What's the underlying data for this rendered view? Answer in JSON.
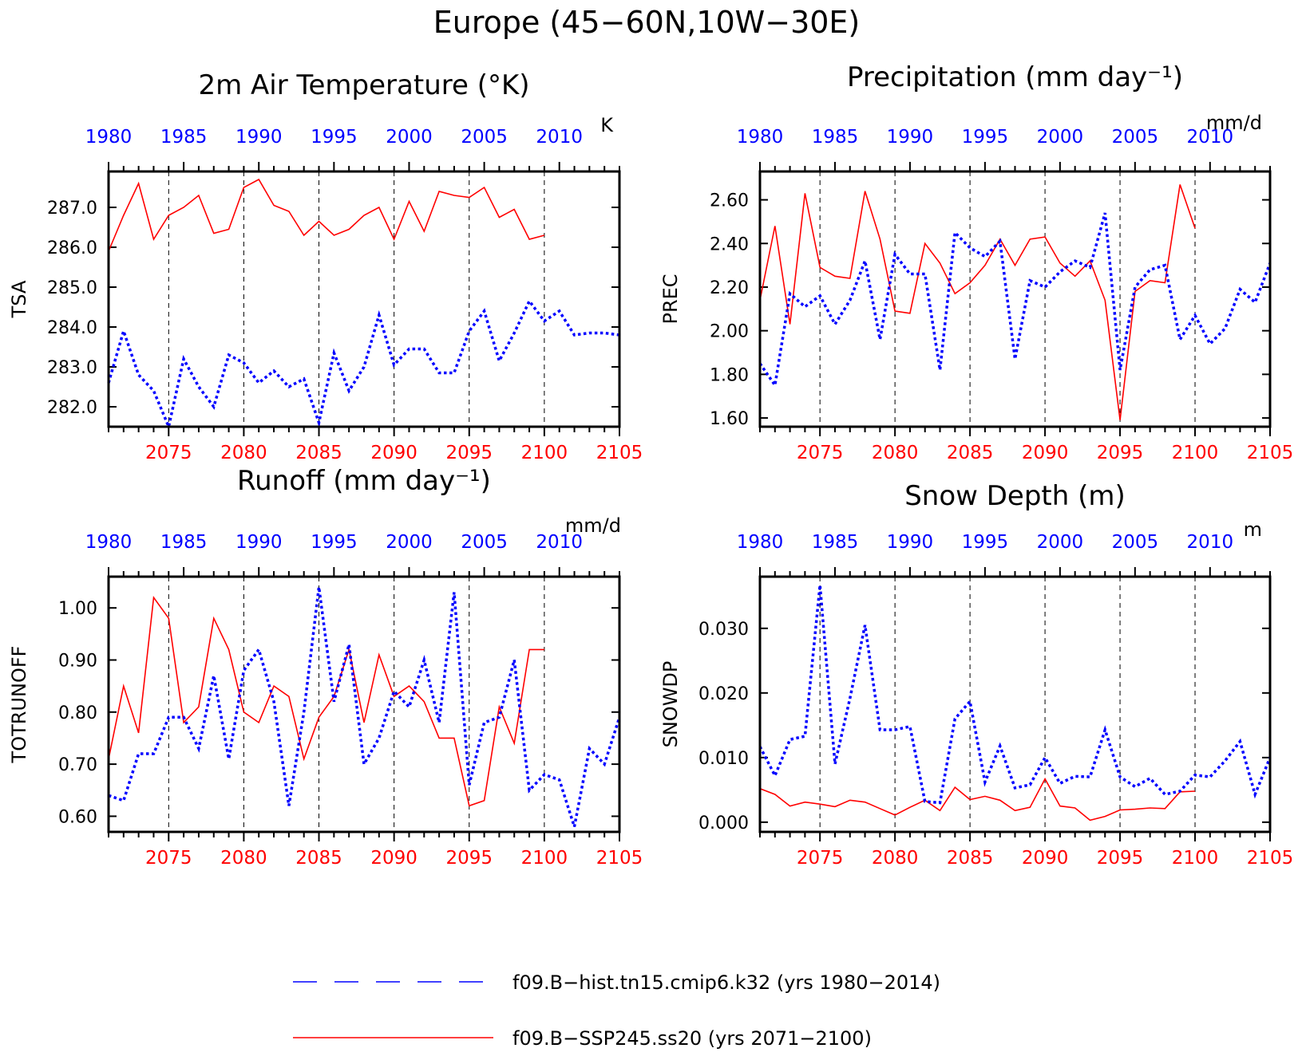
{
  "main_title": "Europe (45−60N,10W−30E)",
  "colors": {
    "hist": "#0000ff",
    "ssp": "#ff0000",
    "axis": "#000000"
  },
  "legend": {
    "hist_label": "f09.B−hist.tn15.cmip6.k32 (yrs 1980−2014)",
    "ssp_label": "f09.B−SSP245.ss20 (yrs 2071−2100)"
  },
  "chart_data": [
    {
      "id": "tsa",
      "type": "line",
      "title": "2m Air Temperature (°K)",
      "ylabel": "TSA",
      "units": "K",
      "ylim": [
        281.5,
        287.9
      ],
      "yticks": [
        282.0,
        283.0,
        284.0,
        285.0,
        286.0,
        287.0
      ],
      "yticklabels": [
        "282.0",
        "283.0",
        "284.0",
        "285.0",
        "286.0",
        "287.0"
      ],
      "x_bottom_range": [
        2071,
        2105
      ],
      "x_bottom_ticks": [
        2075,
        2080,
        2085,
        2090,
        2095,
        2100,
        2105
      ],
      "x_top_range": [
        1980,
        2014
      ],
      "x_top_ticks": [
        1980,
        1985,
        1990,
        1995,
        2000,
        2005,
        2010
      ],
      "vlines": [
        2075,
        2080,
        2085,
        2090,
        2095,
        2100
      ],
      "series": [
        {
          "id": "ssp",
          "axis": "bottom",
          "x": [
            2071,
            2072,
            2073,
            2074,
            2075,
            2076,
            2077,
            2078,
            2079,
            2080,
            2081,
            2082,
            2083,
            2084,
            2085,
            2086,
            2087,
            2088,
            2089,
            2090,
            2091,
            2092,
            2093,
            2094,
            2095,
            2096,
            2097,
            2098,
            2099,
            2100
          ],
          "values": [
            285.9,
            286.8,
            287.6,
            286.2,
            286.8,
            287.0,
            287.3,
            286.35,
            286.45,
            287.5,
            287.7,
            287.05,
            286.9,
            286.3,
            286.65,
            286.3,
            286.45,
            286.8,
            287.0,
            286.2,
            287.15,
            286.4,
            287.4,
            287.3,
            287.25,
            287.5,
            286.75,
            286.95,
            286.2,
            286.3
          ]
        },
        {
          "id": "hist",
          "axis": "top",
          "x": [
            1980,
            1981,
            1982,
            1983,
            1984,
            1985,
            1986,
            1987,
            1988,
            1989,
            1990,
            1991,
            1992,
            1993,
            1994,
            1995,
            1996,
            1997,
            1998,
            1999,
            2000,
            2001,
            2002,
            2003,
            2004,
            2005,
            2006,
            2007,
            2008,
            2009,
            2010,
            2011,
            2012,
            2013,
            2014
          ],
          "values": [
            282.6,
            283.9,
            282.8,
            282.4,
            281.5,
            283.2,
            282.5,
            282.0,
            283.3,
            283.1,
            282.6,
            282.9,
            282.5,
            282.7,
            281.6,
            283.35,
            282.4,
            283.0,
            284.3,
            283.05,
            283.45,
            283.45,
            282.85,
            282.85,
            283.9,
            284.4,
            283.15,
            283.85,
            284.65,
            284.15,
            284.4,
            283.8,
            283.85,
            283.85,
            283.8
          ]
        }
      ]
    },
    {
      "id": "prec",
      "type": "line",
      "title": "Precipitation (mm day⁻¹)",
      "ylabel": "PREC",
      "units": "mm/d",
      "ylim": [
        1.56,
        2.73
      ],
      "yticks": [
        1.6,
        1.8,
        2.0,
        2.2,
        2.4,
        2.6
      ],
      "yticklabels": [
        "1.60",
        "1.80",
        "2.00",
        "2.20",
        "2.40",
        "2.60"
      ],
      "x_bottom_range": [
        2071,
        2105
      ],
      "x_bottom_ticks": [
        2075,
        2080,
        2085,
        2090,
        2095,
        2100,
        2105
      ],
      "x_top_range": [
        1980,
        2014
      ],
      "x_top_ticks": [
        1980,
        1985,
        1990,
        1995,
        2000,
        2005,
        2010
      ],
      "vlines": [
        2075,
        2080,
        2085,
        2090,
        2095,
        2100
      ],
      "series": [
        {
          "id": "ssp",
          "axis": "bottom",
          "x": [
            2071,
            2072,
            2073,
            2074,
            2075,
            2076,
            2077,
            2078,
            2079,
            2080,
            2081,
            2082,
            2083,
            2084,
            2085,
            2086,
            2087,
            2088,
            2089,
            2090,
            2091,
            2092,
            2093,
            2094,
            2095,
            2096,
            2097,
            2098,
            2099,
            2100
          ],
          "values": [
            2.14,
            2.48,
            2.03,
            2.63,
            2.29,
            2.25,
            2.24,
            2.64,
            2.42,
            2.09,
            2.08,
            2.4,
            2.31,
            2.17,
            2.22,
            2.3,
            2.42,
            2.3,
            2.42,
            2.43,
            2.31,
            2.25,
            2.32,
            2.14,
            1.59,
            2.18,
            2.23,
            2.22,
            2.67,
            2.47
          ]
        },
        {
          "id": "hist",
          "axis": "top",
          "x": [
            1980,
            1981,
            1982,
            1983,
            1984,
            1985,
            1986,
            1987,
            1988,
            1989,
            1990,
            1991,
            1992,
            1993,
            1994,
            1995,
            1996,
            1997,
            1998,
            1999,
            2000,
            2001,
            2002,
            2003,
            2004,
            2005,
            2006,
            2007,
            2008,
            2009,
            2010,
            2011,
            2012,
            2013,
            2014
          ],
          "values": [
            1.85,
            1.75,
            2.17,
            2.11,
            2.16,
            2.03,
            2.14,
            2.32,
            1.96,
            2.35,
            2.26,
            2.26,
            1.82,
            2.45,
            2.38,
            2.34,
            2.41,
            1.87,
            2.23,
            2.2,
            2.27,
            2.32,
            2.29,
            2.54,
            1.82,
            2.2,
            2.28,
            2.3,
            1.96,
            2.07,
            1.94,
            2.01,
            2.19,
            2.13,
            2.31
          ]
        }
      ]
    },
    {
      "id": "runoff",
      "type": "line",
      "title": "Runoff (mm day⁻¹)",
      "ylabel": "TOTRUNOFF",
      "units": "mm/d",
      "ylim": [
        0.57,
        1.06
      ],
      "yticks": [
        0.6,
        0.7,
        0.8,
        0.9,
        1.0
      ],
      "yticklabels": [
        "0.60",
        "0.70",
        "0.80",
        "0.90",
        "1.00"
      ],
      "x_bottom_range": [
        2071,
        2105
      ],
      "x_bottom_ticks": [
        2075,
        2080,
        2085,
        2090,
        2095,
        2100,
        2105
      ],
      "x_top_range": [
        1980,
        2014
      ],
      "x_top_ticks": [
        1980,
        1985,
        1990,
        1995,
        2000,
        2005,
        2010
      ],
      "vlines": [
        2075,
        2080,
        2085,
        2090,
        2095,
        2100
      ],
      "series": [
        {
          "id": "ssp",
          "axis": "bottom",
          "x": [
            2071,
            2072,
            2073,
            2074,
            2075,
            2076,
            2077,
            2078,
            2079,
            2080,
            2081,
            2082,
            2083,
            2084,
            2085,
            2086,
            2087,
            2088,
            2089,
            2090,
            2091,
            2092,
            2093,
            2094,
            2095,
            2096,
            2097,
            2098,
            2099,
            2100
          ],
          "values": [
            0.71,
            0.85,
            0.76,
            1.02,
            0.98,
            0.78,
            0.81,
            0.98,
            0.92,
            0.8,
            0.78,
            0.85,
            0.83,
            0.71,
            0.79,
            0.83,
            0.92,
            0.78,
            0.91,
            0.83,
            0.85,
            0.82,
            0.75,
            0.75,
            0.62,
            0.63,
            0.81,
            0.74,
            0.92,
            0.92
          ]
        },
        {
          "id": "hist",
          "axis": "top",
          "x": [
            1980,
            1981,
            1982,
            1983,
            1984,
            1985,
            1986,
            1987,
            1988,
            1989,
            1990,
            1991,
            1992,
            1993,
            1994,
            1995,
            1996,
            1997,
            1998,
            1999,
            2000,
            2001,
            2002,
            2003,
            2004,
            2005,
            2006,
            2007,
            2008,
            2009,
            2010,
            2011,
            2012,
            2013,
            2014
          ],
          "values": [
            0.64,
            0.63,
            0.72,
            0.72,
            0.79,
            0.79,
            0.73,
            0.87,
            0.71,
            0.88,
            0.92,
            0.82,
            0.62,
            0.8,
            1.04,
            0.82,
            0.93,
            0.7,
            0.75,
            0.84,
            0.81,
            0.9,
            0.78,
            1.03,
            0.66,
            0.78,
            0.79,
            0.9,
            0.65,
            0.68,
            0.67,
            0.58,
            0.73,
            0.7,
            0.79
          ]
        }
      ]
    },
    {
      "id": "snowdp",
      "type": "line",
      "title": "Snow Depth (m)",
      "ylabel": "SNOWDP",
      "units": "m",
      "ylim": [
        -0.0015,
        0.038
      ],
      "yticks": [
        0.0,
        0.01,
        0.02,
        0.03
      ],
      "yticklabels": [
        "0.000",
        "0.010",
        "0.020",
        "0.030"
      ],
      "x_bottom_range": [
        2071,
        2105
      ],
      "x_bottom_ticks": [
        2075,
        2080,
        2085,
        2090,
        2095,
        2100,
        2105
      ],
      "x_top_range": [
        1980,
        2014
      ],
      "x_top_ticks": [
        1980,
        1985,
        1990,
        1995,
        2000,
        2005,
        2010
      ],
      "vlines": [
        2075,
        2080,
        2085,
        2090,
        2095,
        2100
      ],
      "series": [
        {
          "id": "ssp",
          "axis": "bottom",
          "x": [
            2071,
            2072,
            2073,
            2074,
            2075,
            2076,
            2077,
            2078,
            2079,
            2080,
            2081,
            2082,
            2083,
            2084,
            2085,
            2086,
            2087,
            2088,
            2089,
            2090,
            2091,
            2092,
            2093,
            2094,
            2095,
            2096,
            2097,
            2098,
            2099,
            2100
          ],
          "values": [
            0.0052,
            0.0043,
            0.0025,
            0.0031,
            0.0028,
            0.0024,
            0.0034,
            0.0031,
            0.0021,
            0.0011,
            0.0023,
            0.0034,
            0.0018,
            0.0054,
            0.0035,
            0.004,
            0.0034,
            0.0018,
            0.0023,
            0.0067,
            0.0025,
            0.0022,
            0.0003,
            0.0009,
            0.0019,
            0.002,
            0.0022,
            0.0021,
            0.0047,
            0.0048
          ]
        },
        {
          "id": "hist",
          "axis": "top",
          "x": [
            1980,
            1981,
            1982,
            1983,
            1984,
            1985,
            1986,
            1987,
            1988,
            1989,
            1990,
            1991,
            1992,
            1993,
            1994,
            1995,
            1996,
            1997,
            1998,
            1999,
            2000,
            2001,
            2002,
            2003,
            2004,
            2005,
            2006,
            2007,
            2008,
            2009,
            2010,
            2011,
            2012,
            2013,
            2014
          ],
          "values": [
            0.0117,
            0.0072,
            0.0128,
            0.0133,
            0.0367,
            0.009,
            0.0192,
            0.0305,
            0.0143,
            0.0143,
            0.0148,
            0.0032,
            0.003,
            0.016,
            0.0187,
            0.0062,
            0.0118,
            0.0053,
            0.0058,
            0.01,
            0.006,
            0.0071,
            0.007,
            0.0143,
            0.007,
            0.0055,
            0.0068,
            0.0043,
            0.0048,
            0.0073,
            0.007,
            0.0095,
            0.0125,
            0.0043,
            0.01
          ]
        }
      ]
    }
  ]
}
